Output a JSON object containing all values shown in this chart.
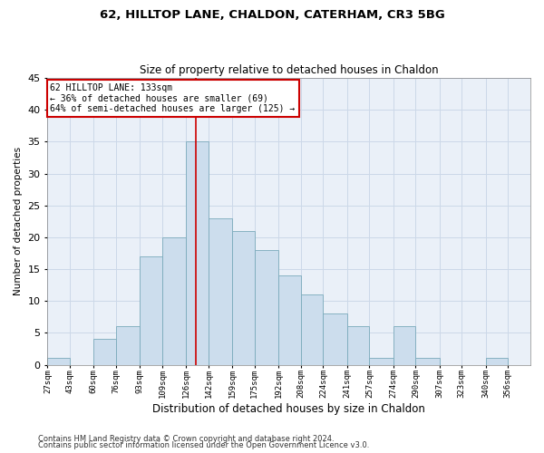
{
  "title1": "62, HILLTOP LANE, CHALDON, CATERHAM, CR3 5BG",
  "title2": "Size of property relative to detached houses in Chaldon",
  "xlabel": "Distribution of detached houses by size in Chaldon",
  "ylabel": "Number of detached properties",
  "bin_labels": [
    "27sqm",
    "43sqm",
    "60sqm",
    "76sqm",
    "93sqm",
    "109sqm",
    "126sqm",
    "142sqm",
    "159sqm",
    "175sqm",
    "192sqm",
    "208sqm",
    "224sqm",
    "241sqm",
    "257sqm",
    "274sqm",
    "290sqm",
    "307sqm",
    "323sqm",
    "340sqm",
    "356sqm"
  ],
  "bar_heights": [
    1,
    0,
    4,
    6,
    17,
    20,
    35,
    23,
    21,
    18,
    14,
    11,
    8,
    6,
    1,
    6,
    1,
    0,
    0,
    1,
    0
  ],
  "bar_color": "#ccdded",
  "bar_edge_color": "#7aaabb",
  "grid_color": "#ccd8e8",
  "background_color": "#eaf0f8",
  "annotation_box_text": "62 HILLTOP LANE: 133sqm\n← 36% of detached houses are smaller (69)\n64% of semi-detached houses are larger (125) →",
  "annotation_box_color": "#ffffff",
  "annotation_box_edge_color": "#cc0000",
  "vline_color": "#cc0000",
  "ylim": [
    0,
    45
  ],
  "yticks": [
    0,
    5,
    10,
    15,
    20,
    25,
    30,
    35,
    40,
    45
  ],
  "footer1": "Contains HM Land Registry data © Crown copyright and database right 2024.",
  "footer2": "Contains public sector information licensed under the Open Government Licence v3.0.",
  "bin_edges": [
    27,
    43,
    60,
    76,
    93,
    109,
    126,
    142,
    159,
    175,
    192,
    208,
    224,
    241,
    257,
    274,
    290,
    307,
    323,
    340,
    356,
    372
  ]
}
